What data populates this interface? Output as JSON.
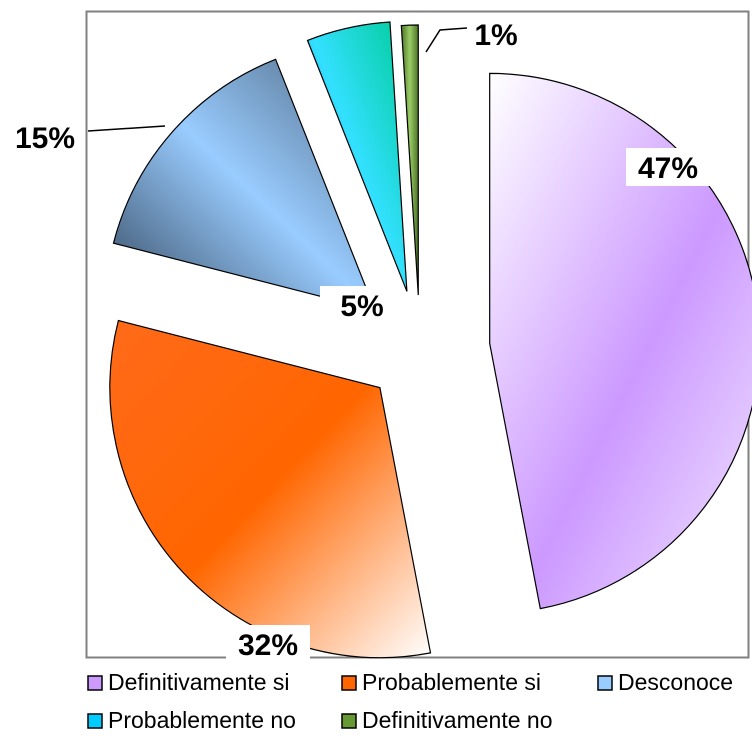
{
  "chart_data": {
    "type": "pie",
    "exploded": true,
    "legend_position": "bottom",
    "series": [
      {
        "name": "Definitivamente si",
        "value": 47,
        "label": "47%",
        "color": "#cc99ff"
      },
      {
        "name": "Probablemente si",
        "value": 32,
        "label": "32%",
        "color": "#ff6600"
      },
      {
        "name": "Desconoce",
        "value": 15,
        "label": "15%",
        "color": "#99ccff"
      },
      {
        "name": "Probablemente no",
        "value": 5,
        "label": "5%",
        "color": "#00ccff"
      },
      {
        "name": "Definitivamente no",
        "value": 1,
        "label": "1%",
        "color": "#669933"
      }
    ]
  }
}
